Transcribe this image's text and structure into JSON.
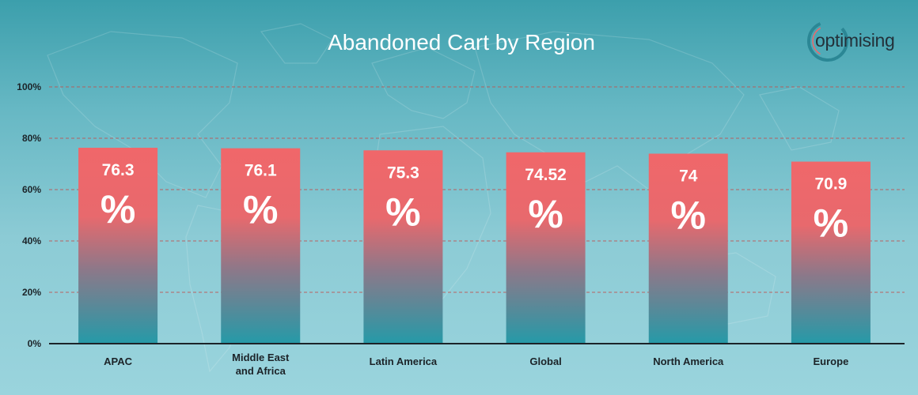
{
  "chart_data": {
    "type": "bar",
    "title": "Abandoned Cart by Region",
    "categories": [
      "APAC",
      "Middle East and Africa",
      "Latin America",
      "Global",
      "North America",
      "Europe"
    ],
    "category_lines": [
      [
        "APAC"
      ],
      [
        "Middle East",
        "and Africa"
      ],
      [
        "Latin America"
      ],
      [
        "Global"
      ],
      [
        "North America"
      ],
      [
        "Europe"
      ]
    ],
    "values": [
      76.3,
      76.1,
      75.3,
      74.52,
      74,
      70.9
    ],
    "value_labels": [
      "76.3",
      "76.1",
      "75.3",
      "74.52",
      "74",
      "70.9"
    ],
    "value_unit": "%",
    "ylim": [
      0,
      100
    ],
    "y_ticks": [
      0,
      20,
      40,
      60,
      80,
      100
    ],
    "y_tick_labels": [
      "0%",
      "20%",
      "40%",
      "60%",
      "80%",
      "100%"
    ],
    "xlabel": "",
    "ylabel": "",
    "grid": true
  },
  "logo": {
    "text": "optimising"
  },
  "colors": {
    "bar_top": "#f0676a",
    "bar_bottom": "#259aa8",
    "grid": "#c0504d",
    "axis": "#1c2328"
  }
}
